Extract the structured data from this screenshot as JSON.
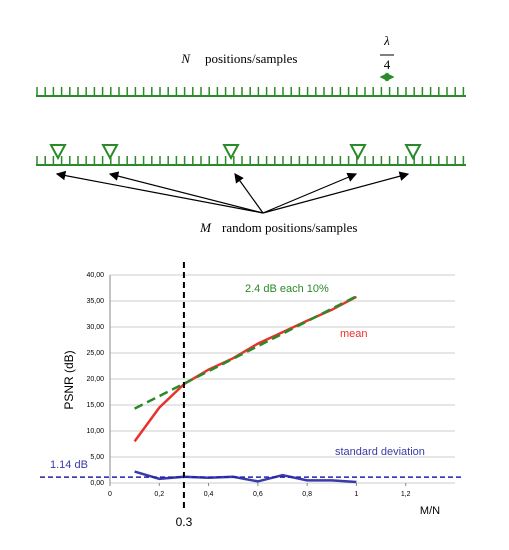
{
  "diagram": {
    "top_var": "N",
    "top_label": "positions/samples",
    "fraction_num": "λ",
    "fraction_den": "4",
    "bottom_var": "M",
    "bottom_label": "random positions/samples"
  },
  "chart_data": {
    "type": "line",
    "ylabel": "PSNR (dB)",
    "xlabel": "M/N",
    "xlim": [
      0,
      1.4
    ],
    "ylim": [
      0,
      40
    ],
    "xticks": [
      0,
      {
        "value": 0.2,
        "label": "0,2"
      },
      {
        "value": 0.4,
        "label": "0,4"
      },
      {
        "value": 0.6,
        "label": "0,6"
      },
      {
        "value": 0.8,
        "label": "0,8"
      },
      {
        "value": 1,
        "label": "1"
      },
      {
        "value": 1.2,
        "label": "1,2"
      }
    ],
    "yticks": [
      {
        "value": 0,
        "label": "0,00"
      },
      {
        "value": 5,
        "label": "5,00"
      },
      {
        "value": 10,
        "label": "10,00"
      },
      {
        "value": 15,
        "label": "15,00"
      },
      {
        "value": 20,
        "label": "20,00"
      },
      {
        "value": 25,
        "label": "25,00"
      },
      {
        "value": 30,
        "label": "30,00"
      },
      {
        "value": 35,
        "label": "35,00"
      },
      {
        "value": 40,
        "label": "40,00"
      }
    ],
    "grid": true,
    "series": [
      {
        "name": "mean",
        "color": "#e8322c",
        "x": [
          0.1,
          0.2,
          0.3,
          0.4,
          0.5,
          0.6,
          0.7,
          0.8,
          0.9,
          1.0
        ],
        "values": [
          8,
          14.5,
          19,
          21.8,
          24,
          26.8,
          29,
          31.2,
          33.3,
          35.8
        ]
      },
      {
        "name": "2.4 dB each 10%",
        "color": "#2a8a2a",
        "dashed": true,
        "x": [
          0.1,
          1.0
        ],
        "values": [
          14.3,
          35.9
        ]
      },
      {
        "name": "standard deviation",
        "color": "#3a3aa8",
        "x": [
          0.1,
          0.2,
          0.3,
          0.4,
          0.5,
          0.6,
          0.7,
          0.8,
          0.9,
          1.0
        ],
        "values": [
          2.2,
          0.8,
          1.2,
          1.0,
          1.2,
          0.3,
          1.5,
          0.5,
          0.5,
          0.2
        ]
      }
    ],
    "vline": 0.3,
    "hline": {
      "value": 1.14,
      "label": "1.14 dB"
    }
  }
}
